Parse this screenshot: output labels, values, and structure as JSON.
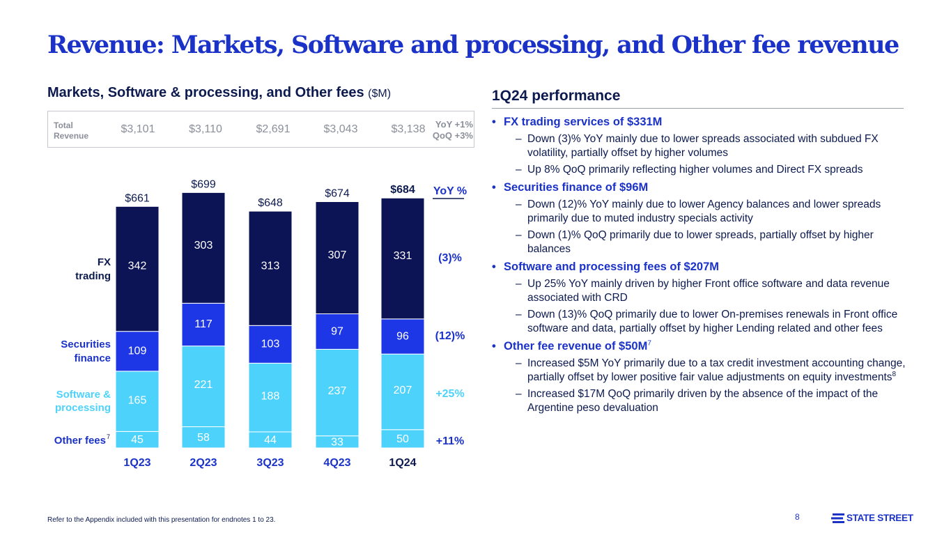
{
  "title": "Revenue: Markets, Software and processing, and Other fee revenue",
  "chart_heading": {
    "text": "Markets, Software & processing, and Other fees",
    "unit": "($M)"
  },
  "total_revenue": {
    "label": "Total Revenue",
    "values": [
      "$3,101",
      "$3,110",
      "$2,691",
      "$3,043",
      "$3,138"
    ],
    "yoy": "YoY +1%",
    "qoq": "QoQ +3%"
  },
  "chart_data": {
    "type": "bar",
    "stacked": true,
    "categories": [
      "1Q23",
      "2Q23",
      "3Q23",
      "4Q23",
      "1Q24"
    ],
    "series": [
      {
        "name": "Other fees",
        "footnote": "7",
        "values": [
          45,
          58,
          44,
          33,
          50
        ],
        "color": "#4dd2fb",
        "label_color": "#1b32c8",
        "yoy": "+11%"
      },
      {
        "name": "Software & processing",
        "values": [
          165,
          221,
          188,
          237,
          207
        ],
        "color": "#4dd2fb",
        "label_color": "#4dd2fb",
        "yoy": "+25%"
      },
      {
        "name": "Securities finance",
        "values": [
          109,
          117,
          103,
          97,
          96
        ],
        "color": "#1e37e6",
        "label_color": "#1b32c8",
        "yoy": "(12)%"
      },
      {
        "name": "FX trading",
        "values": [
          342,
          303,
          313,
          307,
          331
        ],
        "color": "#0c1456",
        "label_color": "#0c1a4f",
        "yoy": "(3)%"
      }
    ],
    "totals": [
      "$661",
      "$699",
      "$648",
      "$674",
      "$684"
    ],
    "highlight_category": "1Q24",
    "yoy_header": "YoY %",
    "ylim": [
      0,
      720
    ]
  },
  "right": {
    "heading": "1Q24 performance",
    "bullets": [
      {
        "text": "FX trading services of $331M",
        "subs": [
          "Down (3)% YoY mainly due to lower spreads associated with subdued FX volatility, partially offset by higher volumes",
          "Up 8% QoQ primarily reflecting higher volumes and Direct FX spreads"
        ]
      },
      {
        "text": "Securities finance of $96M",
        "subs": [
          "Down (12)% YoY mainly due to lower Agency balances and lower spreads primarily due to muted industry specials activity",
          "Down (1)% QoQ primarily due to lower spreads, partially offset by higher balances"
        ]
      },
      {
        "text": "Software and processing fees of $207M",
        "subs": [
          "Up 25% YoY mainly driven by higher Front office software and data revenue associated with CRD",
          "Down (13)% QoQ primarily due to lower On-premises renewals in Front office software and data, partially offset by higher Lending related and other fees"
        ]
      },
      {
        "text": "Other fee revenue of $50M",
        "sup": "7",
        "subs": [
          {
            "text": "Increased $5M YoY primarily due to a tax credit investment accounting change, partially offset by lower positive fair value adjustments on equity investments",
            "sup": "8"
          },
          "Increased $17M QoQ primarily driven by the absence of the impact of the Argentine peso devaluation"
        ]
      }
    ]
  },
  "footnote": "Refer to the Appendix included with this presentation for endnotes 1 to 23.",
  "page_number": "8",
  "logo_text": "STATE STREET",
  "colors": {
    "brand_blue": "#1b32c8",
    "navy": "#0c1456",
    "cyan": "#4dd2fb",
    "text_dark": "#0c1a4f",
    "muted": "#8a8f9a"
  }
}
